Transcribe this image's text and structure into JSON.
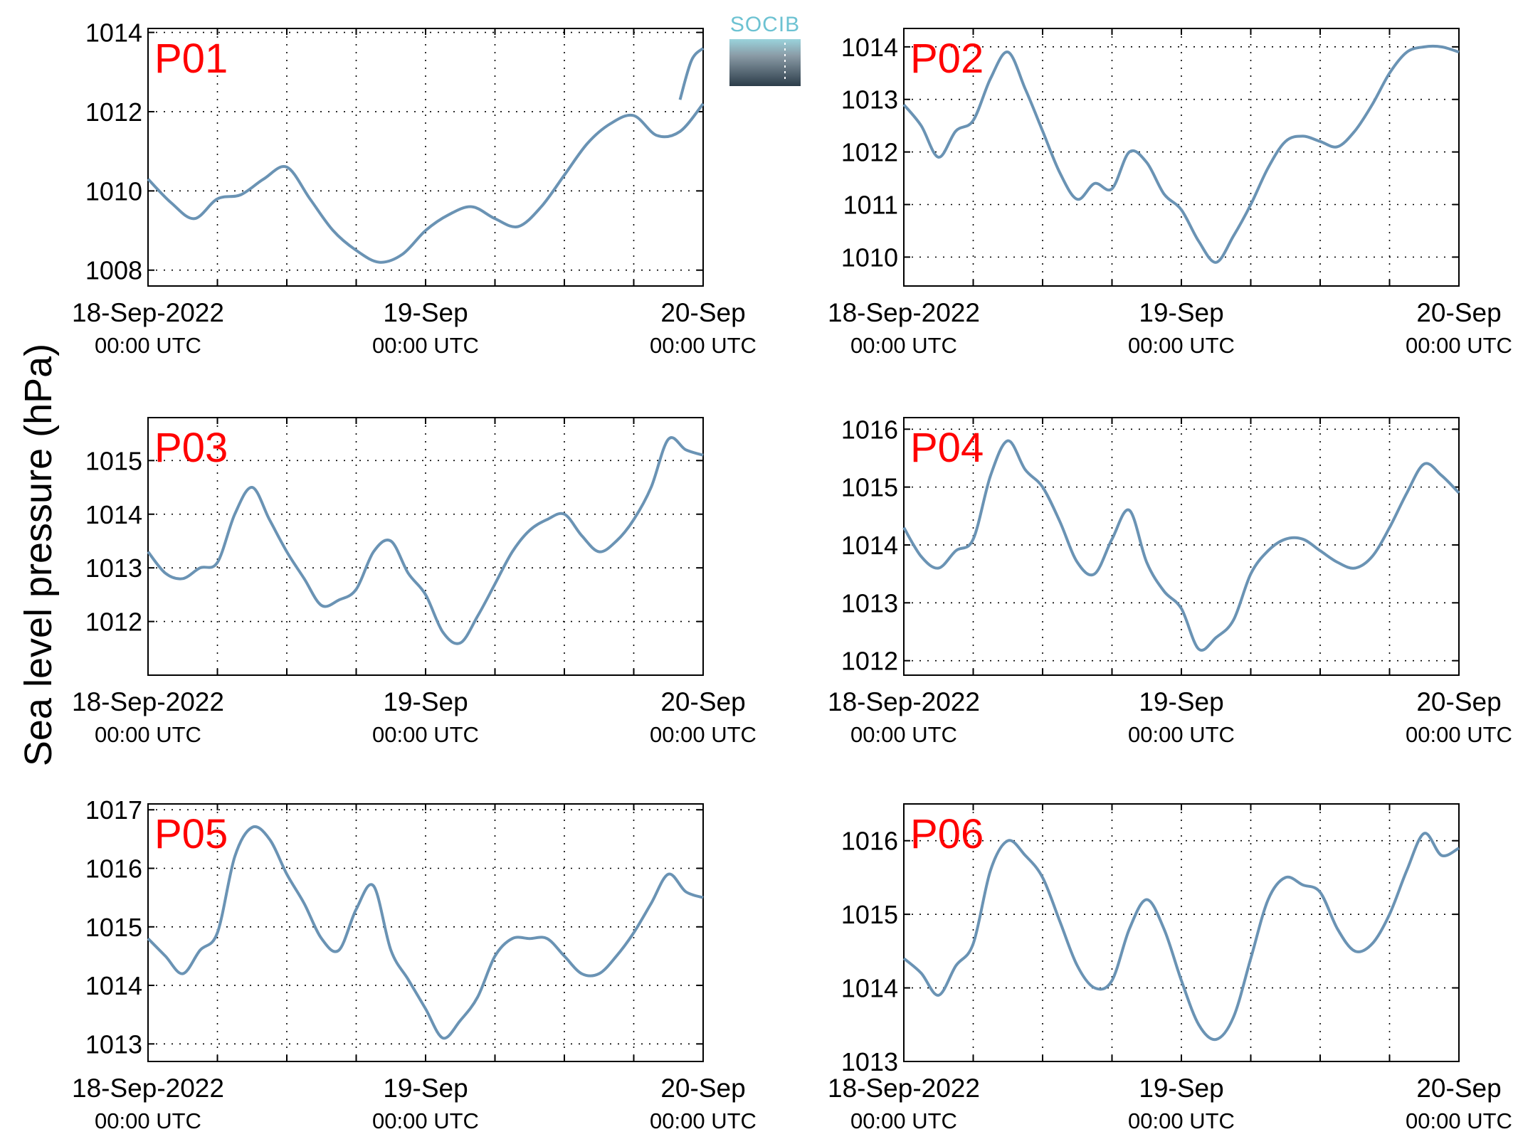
{
  "ylabel": "Sea level pressure (hPa)",
  "logo": {
    "text": "SOCIB"
  },
  "colors": {
    "line": "#6a93b4",
    "panel_label": "#ff0000",
    "grid": "#000000",
    "logo_text": "#6cc2d2"
  },
  "x_ticks": [
    {
      "line1": "18-Sep-2022",
      "line2": "00:00 UTC"
    },
    {
      "line1": "19-Sep",
      "line2": "00:00 UTC"
    },
    {
      "line1": "20-Sep",
      "line2": "00:00 UTC"
    }
  ],
  "chart_data": [
    {
      "type": "line",
      "label": "P01",
      "x_range": [
        "2022-09-18 00:00",
        "2022-09-20 00:00"
      ],
      "ylim": [
        1007.6,
        1014.1
      ],
      "yticks": [
        1008,
        1010,
        1012,
        1014
      ],
      "grid": true,
      "series": [
        {
          "x_hours": [
            0,
            2,
            4,
            6,
            8,
            10,
            12,
            14,
            16,
            18,
            20,
            22,
            24,
            26,
            28,
            30,
            32,
            34,
            36,
            38,
            40,
            42,
            44,
            46,
            48
          ],
          "values": [
            1010.3,
            1009.7,
            1009.3,
            1009.8,
            1009.9,
            1010.3,
            1010.6,
            1009.8,
            1009.0,
            1008.5,
            1008.2,
            1008.4,
            1009.0,
            1009.4,
            1009.6,
            1009.3,
            1009.1,
            1009.6,
            1010.4,
            1011.2,
            1011.7,
            1011.9,
            1011.4,
            1011.5,
            1012.2
          ]
        },
        {
          "x_hours": [
            46,
            47,
            48
          ],
          "values": [
            1012.3,
            1013.3,
            1013.6
          ]
        }
      ]
    },
    {
      "type": "line",
      "label": "P02",
      "x_range": [
        "2022-09-18 00:00",
        "2022-09-20 00:00"
      ],
      "ylim": [
        1009.45,
        1014.35
      ],
      "yticks": [
        1010,
        1011,
        1012,
        1013,
        1014
      ],
      "grid": true,
      "series": [
        {
          "x_hours": [
            0,
            1.5,
            3,
            4.5,
            6,
            7.5,
            9,
            10.5,
            12,
            13.5,
            15,
            16.5,
            18,
            19.5,
            21,
            22.5,
            24,
            25.5,
            27,
            28.5,
            30,
            31.5,
            33,
            34.5,
            36,
            37.5,
            39,
            40.5,
            42,
            43.5,
            45,
            46.5,
            48
          ],
          "values": [
            1012.9,
            1012.5,
            1011.9,
            1012.4,
            1012.6,
            1013.4,
            1013.9,
            1013.2,
            1012.4,
            1011.6,
            1011.1,
            1011.4,
            1011.3,
            1012.0,
            1011.8,
            1011.2,
            1010.9,
            1010.3,
            1009.9,
            1010.4,
            1011.0,
            1011.7,
            1012.2,
            1012.3,
            1012.2,
            1012.1,
            1012.4,
            1012.9,
            1013.5,
            1013.9,
            1014.0,
            1014.0,
            1013.9
          ]
        }
      ]
    },
    {
      "type": "line",
      "label": "P03",
      "x_range": [
        "2022-09-18 00:00",
        "2022-09-20 00:00"
      ],
      "ylim": [
        1011.0,
        1015.8
      ],
      "yticks": [
        1012,
        1013,
        1014,
        1015
      ],
      "grid": true,
      "series": [
        {
          "x_hours": [
            0,
            1.5,
            3,
            4.5,
            6,
            7.5,
            9,
            10.5,
            12,
            13.5,
            15,
            16.5,
            18,
            19.5,
            21,
            22.5,
            24,
            25.5,
            27,
            28.5,
            30,
            31.5,
            33,
            34.5,
            36,
            37.5,
            39,
            40.5,
            42,
            43.5,
            45,
            46.5,
            48
          ],
          "values": [
            1013.3,
            1012.9,
            1012.8,
            1013.0,
            1013.1,
            1014.0,
            1014.5,
            1013.9,
            1013.3,
            1012.8,
            1012.3,
            1012.4,
            1012.6,
            1013.3,
            1013.5,
            1012.9,
            1012.5,
            1011.8,
            1011.6,
            1012.1,
            1012.7,
            1013.3,
            1013.7,
            1013.9,
            1014.0,
            1013.6,
            1013.3,
            1013.5,
            1013.9,
            1014.5,
            1015.4,
            1015.2,
            1015.1
          ]
        }
      ]
    },
    {
      "type": "line",
      "label": "P04",
      "x_range": [
        "2022-09-18 00:00",
        "2022-09-20 00:00"
      ],
      "ylim": [
        1011.75,
        1016.2
      ],
      "yticks": [
        1012,
        1013,
        1014,
        1015,
        1016
      ],
      "grid": true,
      "series": [
        {
          "x_hours": [
            0,
            1.5,
            3,
            4.5,
            6,
            7.5,
            9,
            10.5,
            12,
            13.5,
            15,
            16.5,
            18,
            19.5,
            21,
            22.5,
            24,
            25.5,
            27,
            28.5,
            30,
            31.5,
            33,
            34.5,
            36,
            37.5,
            39,
            40.5,
            42,
            43.5,
            45,
            46.5,
            48
          ],
          "values": [
            1014.3,
            1013.8,
            1013.6,
            1013.9,
            1014.1,
            1015.2,
            1015.8,
            1015.3,
            1015.0,
            1014.4,
            1013.7,
            1013.5,
            1014.1,
            1014.6,
            1013.7,
            1013.2,
            1012.9,
            1012.2,
            1012.4,
            1012.7,
            1013.5,
            1013.9,
            1014.1,
            1014.1,
            1013.9,
            1013.7,
            1013.6,
            1013.8,
            1014.3,
            1014.9,
            1015.4,
            1015.2,
            1014.9
          ]
        }
      ]
    },
    {
      "type": "line",
      "label": "P05",
      "x_range": [
        "2022-09-18 00:00",
        "2022-09-20 00:00"
      ],
      "ylim": [
        1012.7,
        1017.1
      ],
      "yticks": [
        1013,
        1014,
        1015,
        1016,
        1017
      ],
      "grid": true,
      "series": [
        {
          "x_hours": [
            0,
            1.5,
            3,
            4.5,
            6,
            7.5,
            9,
            10.5,
            12,
            13.5,
            15,
            16.5,
            18,
            19.5,
            21,
            22.5,
            24,
            25.5,
            27,
            28.5,
            30,
            31.5,
            33,
            34.5,
            36,
            37.5,
            39,
            40.5,
            42,
            43.5,
            45,
            46.5,
            48
          ],
          "values": [
            1014.8,
            1014.5,
            1014.2,
            1014.6,
            1014.9,
            1016.2,
            1016.7,
            1016.5,
            1015.9,
            1015.4,
            1014.8,
            1014.6,
            1015.3,
            1015.7,
            1014.6,
            1014.1,
            1013.6,
            1013.1,
            1013.4,
            1013.8,
            1014.5,
            1014.8,
            1014.8,
            1014.8,
            1014.5,
            1014.2,
            1014.2,
            1014.5,
            1014.9,
            1015.4,
            1015.9,
            1015.6,
            1015.5
          ]
        }
      ]
    },
    {
      "type": "line",
      "label": "P06",
      "x_range": [
        "2022-09-18 00:00",
        "2022-09-20 00:00"
      ],
      "ylim": [
        1013.0,
        1016.5
      ],
      "yticks": [
        1013,
        1014,
        1015,
        1016
      ],
      "grid": true,
      "series": [
        {
          "x_hours": [
            0,
            1.5,
            3,
            4.5,
            6,
            7.5,
            9,
            10.5,
            12,
            13.5,
            15,
            16.5,
            18,
            19.5,
            21,
            22.5,
            24,
            25.5,
            27,
            28.5,
            30,
            31.5,
            33,
            34.5,
            36,
            37.5,
            39,
            40.5,
            42,
            43.5,
            45,
            46.5,
            48
          ],
          "values": [
            1014.4,
            1014.2,
            1013.9,
            1014.3,
            1014.6,
            1015.6,
            1016.0,
            1015.8,
            1015.5,
            1014.9,
            1014.3,
            1014.0,
            1014.1,
            1014.8,
            1015.2,
            1014.8,
            1014.1,
            1013.5,
            1013.3,
            1013.6,
            1014.4,
            1015.2,
            1015.5,
            1015.4,
            1015.3,
            1014.8,
            1014.5,
            1014.6,
            1015.0,
            1015.6,
            1016.1,
            1015.8,
            1015.9
          ]
        }
      ]
    }
  ]
}
